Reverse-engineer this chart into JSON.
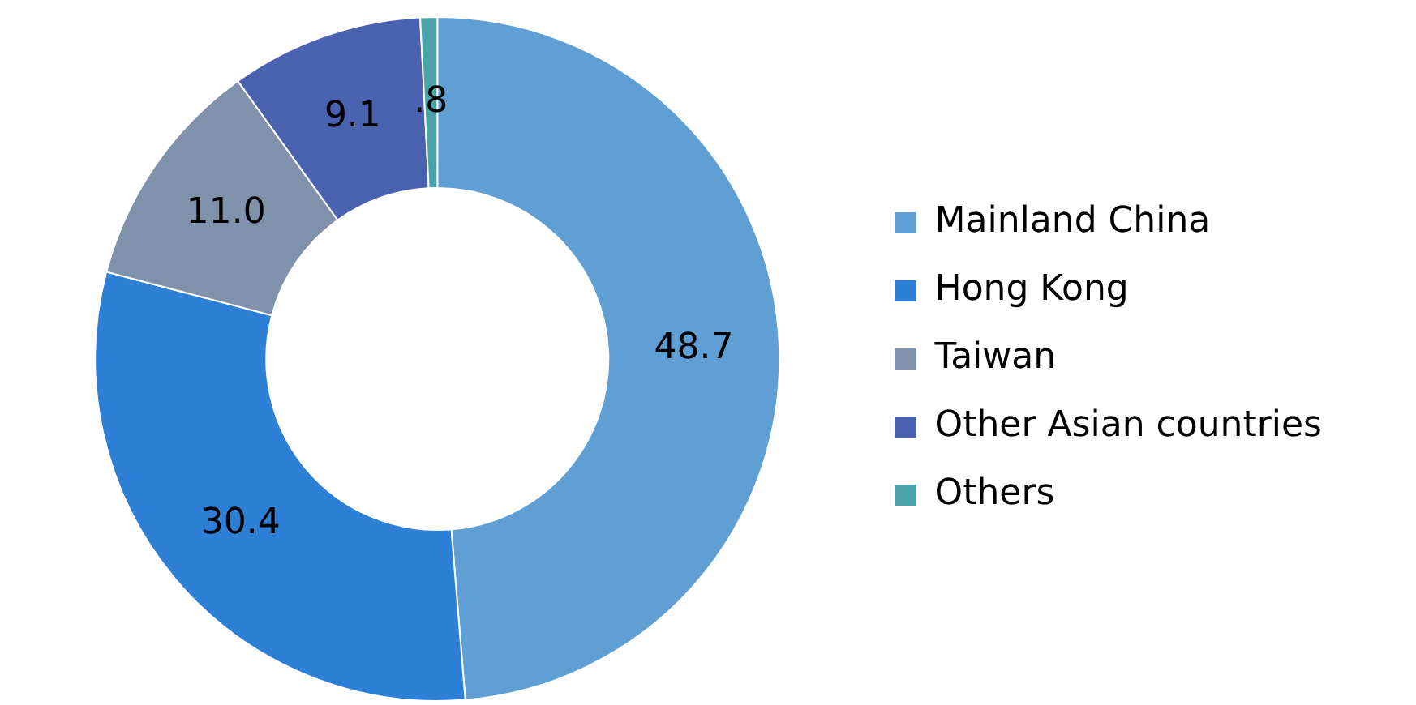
{
  "chart_data": {
    "type": "donut",
    "categories": [
      "Mainland China",
      "Hong Kong",
      "Taiwan",
      "Other Asian countries",
      "Others"
    ],
    "values": [
      48.7,
      30.4,
      11.0,
      9.1,
      0.8
    ],
    "value_labels": [
      "48.7",
      "30.4",
      "11.0",
      "9.1",
      ".8"
    ],
    "colors": [
      "#609fd4",
      "#2e7fd6",
      "#8091ab",
      "#4a62b0",
      "#4aa3ab"
    ],
    "legend": "right"
  }
}
